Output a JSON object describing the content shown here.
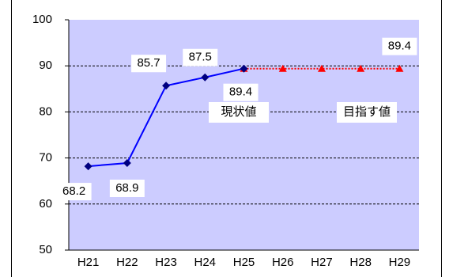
{
  "chart_data": {
    "type": "line",
    "categories": [
      "H21",
      "H22",
      "H23",
      "H24",
      "H25",
      "H26",
      "H27",
      "H28",
      "H29"
    ],
    "series": [
      {
        "name": "現状値",
        "color": "#0000ff",
        "marker": "diamond",
        "marker_color": "#000080",
        "line_style": "solid",
        "data_labels": "all",
        "values": [
          68.2,
          68.9,
          85.7,
          87.5,
          89.4,
          null,
          null,
          null,
          null
        ]
      },
      {
        "name": "目指す値",
        "color": "#ff0000",
        "marker": "triangle",
        "marker_color": "#ff0000",
        "line_style": "dotted",
        "data_labels": "last",
        "values": [
          null,
          null,
          null,
          null,
          89.4,
          89.4,
          89.4,
          89.4,
          89.4
        ]
      }
    ],
    "ylim": [
      50,
      100
    ],
    "yticks": [
      50,
      60,
      70,
      80,
      90,
      100
    ],
    "grid": true,
    "plot_background": "#ccccff"
  }
}
